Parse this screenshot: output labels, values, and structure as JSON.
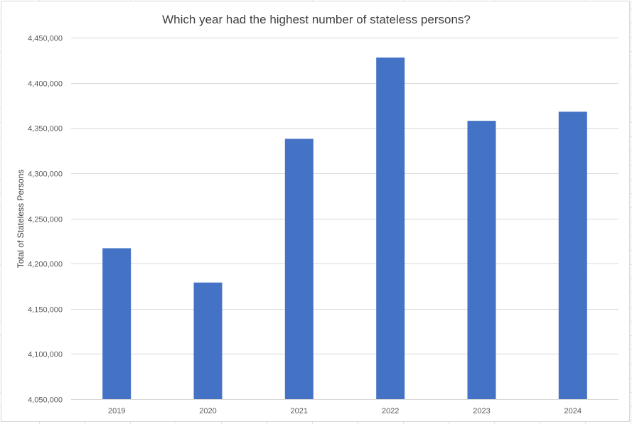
{
  "chart_data": {
    "type": "bar",
    "title": "Which year had the highest number of stateless persons?",
    "xlabel": "",
    "ylabel": "Total of Stateless Persons",
    "categories": [
      "2019",
      "2020",
      "2021",
      "2022",
      "2023",
      "2024"
    ],
    "values": [
      4217000,
      4179000,
      4338000,
      4428000,
      4358000,
      4368000
    ],
    "ylim": [
      4050000,
      4450000
    ],
    "y_ticks": [
      4050000,
      4100000,
      4150000,
      4200000,
      4250000,
      4300000,
      4350000,
      4400000,
      4450000
    ],
    "y_tick_labels": [
      "4,050,000",
      "4,100,000",
      "4,150,000",
      "4,200,000",
      "4,250,000",
      "4,300,000",
      "4,350,000",
      "4,400,000",
      "4,450,000"
    ],
    "grid": true,
    "legend": "none",
    "colors": {
      "bar": "#4472c4",
      "grid": "#d9d9d9",
      "axis_text": "#595959",
      "title_text": "#404040"
    }
  }
}
